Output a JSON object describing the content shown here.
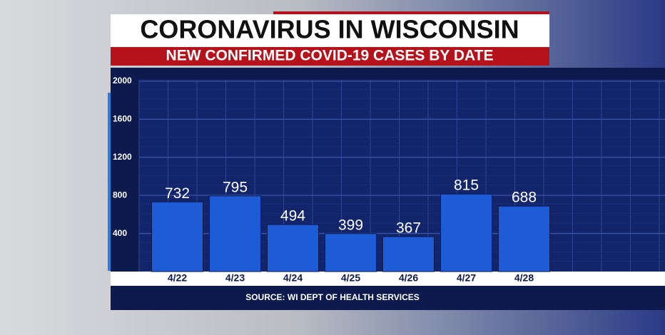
{
  "chart_data": {
    "type": "bar",
    "title": "CORONAVIRUS IN WISCONSIN",
    "subtitle": "NEW CONFIRMED COVID-19 CASES BY DATE",
    "source": "SOURCE: WI DEPT OF HEALTH SERVICES",
    "categories": [
      "4/22",
      "4/23",
      "4/24",
      "4/25",
      "4/26",
      "4/27",
      "4/28"
    ],
    "values": [
      732,
      795,
      494,
      399,
      367,
      815,
      688
    ],
    "color": "#1e5bd6",
    "ylim": [
      0,
      2000
    ],
    "yticks": [
      400,
      800,
      1200,
      1600,
      2000
    ],
    "grid": true
  }
}
